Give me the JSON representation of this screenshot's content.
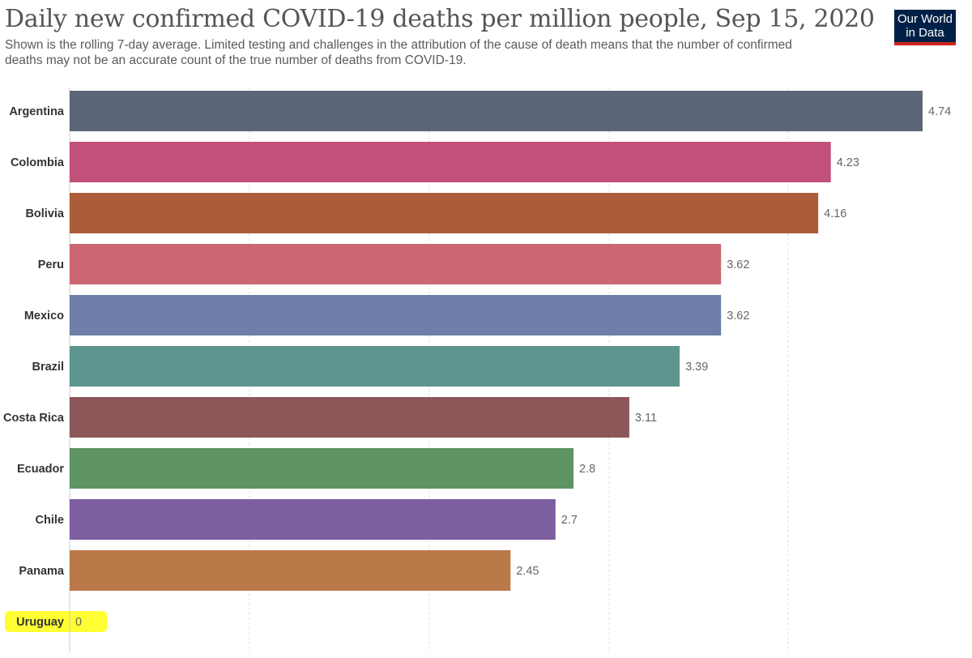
{
  "header": {
    "title": "Daily new confirmed COVID-19 deaths per million people, Sep 15, 2020",
    "subtitle": "Shown is the rolling 7-day average. Limited testing and challenges in the attribution of the cause of death means that the number of confirmed deaths may not be an accurate count of the true number of deaths from COVID-19."
  },
  "logo": {
    "line1": "Our World",
    "line2": "in Data"
  },
  "chart_data": {
    "type": "bar",
    "orientation": "horizontal",
    "title": "Daily new confirmed COVID-19 deaths per million people, Sep 15, 2020",
    "xlim": [
      0,
      4.74
    ],
    "grid": true,
    "categories": [
      "Argentina",
      "Colombia",
      "Bolivia",
      "Peru",
      "Mexico",
      "Brazil",
      "Costa Rica",
      "Ecuador",
      "Chile",
      "Panama",
      "Uruguay"
    ],
    "values": [
      4.74,
      4.23,
      4.16,
      3.62,
      3.62,
      3.39,
      3.11,
      2.8,
      2.7,
      2.45,
      0
    ],
    "value_labels": [
      "4.74",
      "4.23",
      "4.16",
      "3.62",
      "3.62",
      "3.39",
      "3.11",
      "2.8",
      "2.7",
      "2.45",
      "0"
    ],
    "colors": [
      "#5b6779",
      "#c1507a",
      "#ab5d39",
      "#cc6670",
      "#6d7fa8",
      "#5e958f",
      "#8c5759",
      "#5d9462",
      "#7d5ea0",
      "#bb7848",
      "#8c8c8c"
    ],
    "highlight": {
      "category": "Uruguay",
      "color": "#ffff33"
    }
  }
}
